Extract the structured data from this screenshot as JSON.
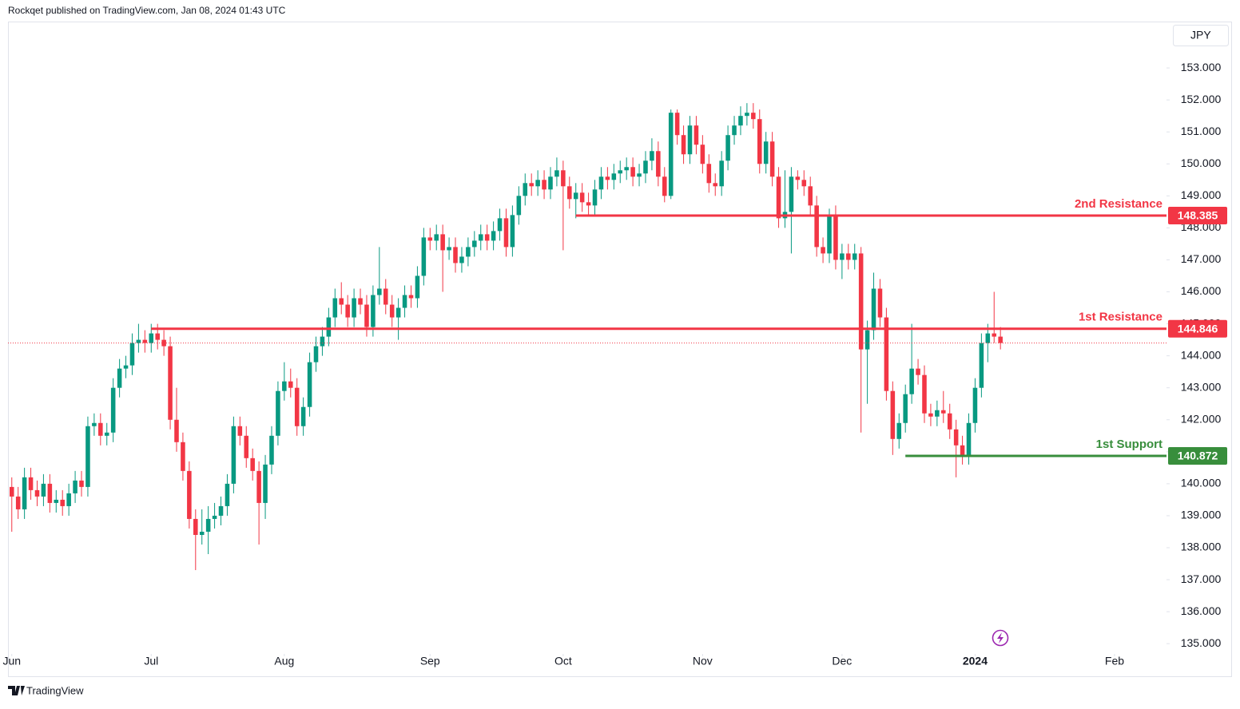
{
  "header": {
    "text": "Rockqet published on TradingView.com, Jan 08, 2024 01:43 UTC"
  },
  "footer": {
    "brand": "TradingView"
  },
  "chart_data": {
    "type": "candlestick",
    "currency": "JPY",
    "up_color": "#089981",
    "down_color": "#f23645",
    "xlim": [
      -0.6,
      182.2
    ],
    "xticks": [
      {
        "value": 0,
        "label": "Jun"
      },
      {
        "value": 22,
        "label": "Jul"
      },
      {
        "value": 43,
        "label": "Aug"
      },
      {
        "value": 66,
        "label": "Sep"
      },
      {
        "value": 87,
        "label": "Oct"
      },
      {
        "value": 109,
        "label": "Nov"
      },
      {
        "value": 131,
        "label": "Dec"
      },
      {
        "value": 152,
        "label": "2024"
      },
      {
        "value": 174,
        "label": "Feb"
      }
    ],
    "ylim": [
      134.78,
      154.45
    ],
    "yticks": [
      {
        "value": 135,
        "label": "135.000"
      },
      {
        "value": 136,
        "label": "136.000"
      },
      {
        "value": 137,
        "label": "137.000"
      },
      {
        "value": 138,
        "label": "138.000"
      },
      {
        "value": 139,
        "label": "139.000"
      },
      {
        "value": 140,
        "label": "140.000"
      },
      {
        "value": 141,
        "label": "141.000"
      },
      {
        "value": 142,
        "label": "142.000"
      },
      {
        "value": 143,
        "label": "143.000"
      },
      {
        "value": 144,
        "label": "144.000"
      },
      {
        "value": 145,
        "label": "145.000"
      },
      {
        "value": 146,
        "label": "146.000"
      },
      {
        "value": 147,
        "label": "147.000"
      },
      {
        "value": 148,
        "label": "148.000"
      },
      {
        "value": 149,
        "label": "149.000"
      },
      {
        "value": 150,
        "label": "150.000"
      },
      {
        "value": 151,
        "label": "151.000"
      },
      {
        "value": 152,
        "label": "152.000"
      },
      {
        "value": 153,
        "label": "153.000"
      }
    ],
    "levels": [
      {
        "name": "2nd Resistance",
        "value": 148.385,
        "start": 89,
        "color": "#f23645"
      },
      {
        "name": "1st Resistance",
        "value": 144.846,
        "start": 22,
        "color": "#f23645"
      },
      {
        "name": "1st Support",
        "value": 140.872,
        "start": 141,
        "color": "#388e3c"
      }
    ],
    "ohlc": [
      [
        139.9,
        140.2,
        138.5,
        139.6
      ],
      [
        139.6,
        139.9,
        138.9,
        139.2
      ],
      [
        139.2,
        140.5,
        138.9,
        140.2
      ],
      [
        140.2,
        140.5,
        139.5,
        139.8
      ],
      [
        139.8,
        140.1,
        139.3,
        139.6
      ],
      [
        139.6,
        140.3,
        139.3,
        140.0
      ],
      [
        140.0,
        140.3,
        139.1,
        139.4
      ],
      [
        139.4,
        139.8,
        139.1,
        139.5
      ],
      [
        139.5,
        139.8,
        139.0,
        139.3
      ],
      [
        139.3,
        140.0,
        139.0,
        139.7
      ],
      [
        139.7,
        140.4,
        139.4,
        140.1
      ],
      [
        140.1,
        140.4,
        139.6,
        139.9
      ],
      [
        139.9,
        142.1,
        139.6,
        141.8
      ],
      [
        141.8,
        142.2,
        141.5,
        141.9
      ],
      [
        141.9,
        142.2,
        141.2,
        141.5
      ],
      [
        141.5,
        141.9,
        141.2,
        141.6
      ],
      [
        141.6,
        143.3,
        141.3,
        143.0
      ],
      [
        143.0,
        143.9,
        142.7,
        143.6
      ],
      [
        143.6,
        144.0,
        143.3,
        143.7
      ],
      [
        143.7,
        144.7,
        143.4,
        144.4
      ],
      [
        144.4,
        145.0,
        144.1,
        144.5
      ],
      [
        144.5,
        144.8,
        144.1,
        144.4
      ],
      [
        144.4,
        145.0,
        144.1,
        144.7
      ],
      [
        144.7,
        145.0,
        144.2,
        144.5
      ],
      [
        144.5,
        144.8,
        144.0,
        144.3
      ],
      [
        144.3,
        144.6,
        141.7,
        142.0
      ],
      [
        142.0,
        143.0,
        141.0,
        141.3
      ],
      [
        141.3,
        141.6,
        140.1,
        140.4
      ],
      [
        140.4,
        140.7,
        138.6,
        138.9
      ],
      [
        138.9,
        139.2,
        137.3,
        138.4
      ],
      [
        138.4,
        139.2,
        138.1,
        138.5
      ],
      [
        138.5,
        139.3,
        137.8,
        138.9
      ],
      [
        138.9,
        139.4,
        138.6,
        139.0
      ],
      [
        139.0,
        139.6,
        138.7,
        139.3
      ],
      [
        139.3,
        140.3,
        139.0,
        140.0
      ],
      [
        140.0,
        142.1,
        139.7,
        141.8
      ],
      [
        141.8,
        142.1,
        141.2,
        141.5
      ],
      [
        141.5,
        141.8,
        140.5,
        140.8
      ],
      [
        140.8,
        141.1,
        140.1,
        140.4
      ],
      [
        140.4,
        140.7,
        138.1,
        139.4
      ],
      [
        139.4,
        140.9,
        138.9,
        140.6
      ],
      [
        140.6,
        141.8,
        140.3,
        141.5
      ],
      [
        141.5,
        143.2,
        141.2,
        142.9
      ],
      [
        142.9,
        143.8,
        142.6,
        143.2
      ],
      [
        143.2,
        143.6,
        142.7,
        143.0
      ],
      [
        143.0,
        143.3,
        141.5,
        141.8
      ],
      [
        141.8,
        142.7,
        141.5,
        142.4
      ],
      [
        142.4,
        144.1,
        142.1,
        143.8
      ],
      [
        143.8,
        144.6,
        143.5,
        144.3
      ],
      [
        144.3,
        144.9,
        144.0,
        144.6
      ],
      [
        144.6,
        145.5,
        144.3,
        145.2
      ],
      [
        145.2,
        146.1,
        144.9,
        145.8
      ],
      [
        145.8,
        146.3,
        145.3,
        145.6
      ],
      [
        145.6,
        145.9,
        144.9,
        145.2
      ],
      [
        145.2,
        146.1,
        144.9,
        145.8
      ],
      [
        145.8,
        146.1,
        145.3,
        145.6
      ],
      [
        145.6,
        145.9,
        144.6,
        144.9
      ],
      [
        144.9,
        146.2,
        144.6,
        145.9
      ],
      [
        145.9,
        147.4,
        145.6,
        146.1
      ],
      [
        146.1,
        146.4,
        145.3,
        145.6
      ],
      [
        145.6,
        145.9,
        144.9,
        145.2
      ],
      [
        145.2,
        145.8,
        144.5,
        145.5
      ],
      [
        145.5,
        146.2,
        145.2,
        145.9
      ],
      [
        145.9,
        146.2,
        145.5,
        145.8
      ],
      [
        145.8,
        146.8,
        145.5,
        146.5
      ],
      [
        146.5,
        148.0,
        146.2,
        147.7
      ],
      [
        147.7,
        148.0,
        147.3,
        147.6
      ],
      [
        147.6,
        148.1,
        147.3,
        147.8
      ],
      [
        147.8,
        148.1,
        146.0,
        147.3
      ],
      [
        147.3,
        147.7,
        147.0,
        147.4
      ],
      [
        147.4,
        147.7,
        146.6,
        146.9
      ],
      [
        146.9,
        147.4,
        146.6,
        147.1
      ],
      [
        147.1,
        147.7,
        146.8,
        147.4
      ],
      [
        147.4,
        147.9,
        147.1,
        147.6
      ],
      [
        147.6,
        148.1,
        147.3,
        147.8
      ],
      [
        147.8,
        148.1,
        147.3,
        147.6
      ],
      [
        147.6,
        148.2,
        147.3,
        147.9
      ],
      [
        147.9,
        148.6,
        147.6,
        148.3
      ],
      [
        148.3,
        148.6,
        147.1,
        147.4
      ],
      [
        147.4,
        148.7,
        147.1,
        148.4
      ],
      [
        148.4,
        149.3,
        148.1,
        149.0
      ],
      [
        149.0,
        149.7,
        148.7,
        149.4
      ],
      [
        149.4,
        149.7,
        149.0,
        149.3
      ],
      [
        149.3,
        149.8,
        149.0,
        149.5
      ],
      [
        149.5,
        149.8,
        148.9,
        149.2
      ],
      [
        149.2,
        149.9,
        148.9,
        149.6
      ],
      [
        149.6,
        150.2,
        149.3,
        149.8
      ],
      [
        149.8,
        150.1,
        147.3,
        149.3
      ],
      [
        149.3,
        149.6,
        148.6,
        148.9
      ],
      [
        148.9,
        149.4,
        148.3,
        149.1
      ],
      [
        149.1,
        149.4,
        148.5,
        148.8
      ],
      [
        148.8,
        149.1,
        148.4,
        148.7
      ],
      [
        148.7,
        149.5,
        148.4,
        149.2
      ],
      [
        149.2,
        149.9,
        148.9,
        149.6
      ],
      [
        149.6,
        149.9,
        149.2,
        149.5
      ],
      [
        149.5,
        150.0,
        149.2,
        149.7
      ],
      [
        149.7,
        150.1,
        149.4,
        149.8
      ],
      [
        149.8,
        150.2,
        149.5,
        149.9
      ],
      [
        149.9,
        150.2,
        149.3,
        149.6
      ],
      [
        149.6,
        150.0,
        149.3,
        149.7
      ],
      [
        149.7,
        150.4,
        149.4,
        150.1
      ],
      [
        150.1,
        150.8,
        149.8,
        150.4
      ],
      [
        150.4,
        150.7,
        149.3,
        149.6
      ],
      [
        149.6,
        149.9,
        148.8,
        149.0
      ],
      [
        149.0,
        151.7,
        148.9,
        151.6
      ],
      [
        151.6,
        151.7,
        150.6,
        150.9
      ],
      [
        150.9,
        151.2,
        150.0,
        150.3
      ],
      [
        150.3,
        151.5,
        150.0,
        151.2
      ],
      [
        151.2,
        151.5,
        150.3,
        150.6
      ],
      [
        150.6,
        150.9,
        149.7,
        150.0
      ],
      [
        150.0,
        150.3,
        149.1,
        149.4
      ],
      [
        149.4,
        149.7,
        149.0,
        149.3
      ],
      [
        149.3,
        150.4,
        149.0,
        150.1
      ],
      [
        150.1,
        151.2,
        149.8,
        150.9
      ],
      [
        150.9,
        151.5,
        150.6,
        151.2
      ],
      [
        151.2,
        151.8,
        150.9,
        151.5
      ],
      [
        151.5,
        151.9,
        151.2,
        151.6
      ],
      [
        151.6,
        151.9,
        151.1,
        151.4
      ],
      [
        151.4,
        151.7,
        149.7,
        150.0
      ],
      [
        150.0,
        151.0,
        149.7,
        150.7
      ],
      [
        150.7,
        151.0,
        149.3,
        149.6
      ],
      [
        149.6,
        149.9,
        148.0,
        148.3
      ],
      [
        148.3,
        149.8,
        148.0,
        148.5
      ],
      [
        148.5,
        149.9,
        147.2,
        149.6
      ],
      [
        149.6,
        149.8,
        149.2,
        149.5
      ],
      [
        149.5,
        149.8,
        149.0,
        149.3
      ],
      [
        149.3,
        149.6,
        148.4,
        148.7
      ],
      [
        148.7,
        149.0,
        147.1,
        147.4
      ],
      [
        147.4,
        147.7,
        146.9,
        147.2
      ],
      [
        147.2,
        148.6,
        146.9,
        148.4
      ],
      [
        148.4,
        148.7,
        146.7,
        147.0
      ],
      [
        147.0,
        147.5,
        146.4,
        147.2
      ],
      [
        147.2,
        147.5,
        146.7,
        147.0
      ],
      [
        147.0,
        147.5,
        146.7,
        147.2
      ],
      [
        147.2,
        147.4,
        141.6,
        144.2
      ],
      [
        144.2,
        145.1,
        142.5,
        144.8
      ],
      [
        144.8,
        146.6,
        144.5,
        146.1
      ],
      [
        146.1,
        146.4,
        144.9,
        145.2
      ],
      [
        145.2,
        145.5,
        142.6,
        142.9
      ],
      [
        142.9,
        143.2,
        140.9,
        141.4
      ],
      [
        141.4,
        142.2,
        141.1,
        141.9
      ],
      [
        141.9,
        143.1,
        141.6,
        142.8
      ],
      [
        142.8,
        145.0,
        142.5,
        143.6
      ],
      [
        143.6,
        143.9,
        143.1,
        143.4
      ],
      [
        143.4,
        143.7,
        141.9,
        142.2
      ],
      [
        142.2,
        142.5,
        141.8,
        142.1
      ],
      [
        142.1,
        142.6,
        141.8,
        142.3
      ],
      [
        142.3,
        142.9,
        141.9,
        142.2
      ],
      [
        142.2,
        142.5,
        141.4,
        141.7
      ],
      [
        141.7,
        142.0,
        140.2,
        141.2
      ],
      [
        141.2,
        141.5,
        140.6,
        140.9
      ],
      [
        140.9,
        142.2,
        140.6,
        141.9
      ],
      [
        141.9,
        143.3,
        141.6,
        143.0
      ],
      [
        143.0,
        144.7,
        142.7,
        144.4
      ],
      [
        144.4,
        145.0,
        143.8,
        144.7
      ],
      [
        144.7,
        146.0,
        144.4,
        144.6
      ],
      [
        144.6,
        144.9,
        144.2,
        144.4
      ]
    ]
  }
}
